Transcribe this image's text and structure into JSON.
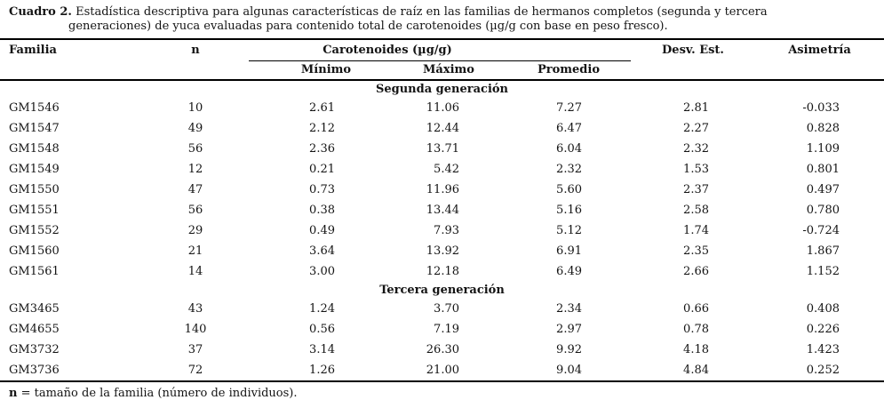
{
  "caption": {
    "label": "Cuadro 2.",
    "line1": "Estadística descriptiva para algunas características de raíz en las familias de hermanos completos (segunda y tercera",
    "line2": "generaciones) de yuca evaluadas para contenido total de carotenoides (µg/g con base en peso fresco)."
  },
  "table": {
    "columns": {
      "familia": "Familia",
      "n": "n",
      "group": "Carotenoides (µg/g)",
      "minimo": "Mínimo",
      "maximo": "Máximo",
      "promedio": "Promedio",
      "desv_est": "Desv. Est.",
      "asimetria": "Asimetría"
    },
    "sections": [
      {
        "label": "Segunda generación",
        "rows": [
          [
            "GM1546",
            "10",
            "2.61",
            "11.06",
            "7.27",
            "2.81",
            "-0.033"
          ],
          [
            "GM1547",
            "49",
            "2.12",
            "12.44",
            "6.47",
            "2.27",
            "0.828"
          ],
          [
            "GM1548",
            "56",
            "2.36",
            "13.71",
            "6.04",
            "2.32",
            "1.109"
          ],
          [
            "GM1549",
            "12",
            "0.21",
            "5.42",
            "2.32",
            "1.53",
            "0.801"
          ],
          [
            "GM1550",
            "47",
            "0.73",
            "11.96",
            "5.60",
            "2.37",
            "0.497"
          ],
          [
            "GM1551",
            "56",
            "0.38",
            "13.44",
            "5.16",
            "2.58",
            "0.780"
          ],
          [
            "GM1552",
            "29",
            "0.49",
            "7.93",
            "5.12",
            "1.74",
            "-0.724"
          ],
          [
            "GM1560",
            "21",
            "3.64",
            "13.92",
            "6.91",
            "2.35",
            "1.867"
          ],
          [
            "GM1561",
            "14",
            "3.00",
            "12.18",
            "6.49",
            "2.66",
            "1.152"
          ]
        ]
      },
      {
        "label": "Tercera generación",
        "rows": [
          [
            "GM3465",
            "43",
            "1.24",
            "3.70",
            "2.34",
            "0.66",
            "0.408"
          ],
          [
            "GM4655",
            "140",
            "0.56",
            "7.19",
            "2.97",
            "0.78",
            "0.226"
          ],
          [
            "GM3732",
            "37",
            "3.14",
            "26.30",
            "9.92",
            "4.18",
            "1.423"
          ],
          [
            "GM3736",
            "72",
            "1.26",
            "21.00",
            "9.04",
            "4.84",
            "0.252"
          ]
        ]
      }
    ]
  },
  "footnote": {
    "term": "n",
    "text": " = tamaño de la familia (número de individuos)."
  }
}
